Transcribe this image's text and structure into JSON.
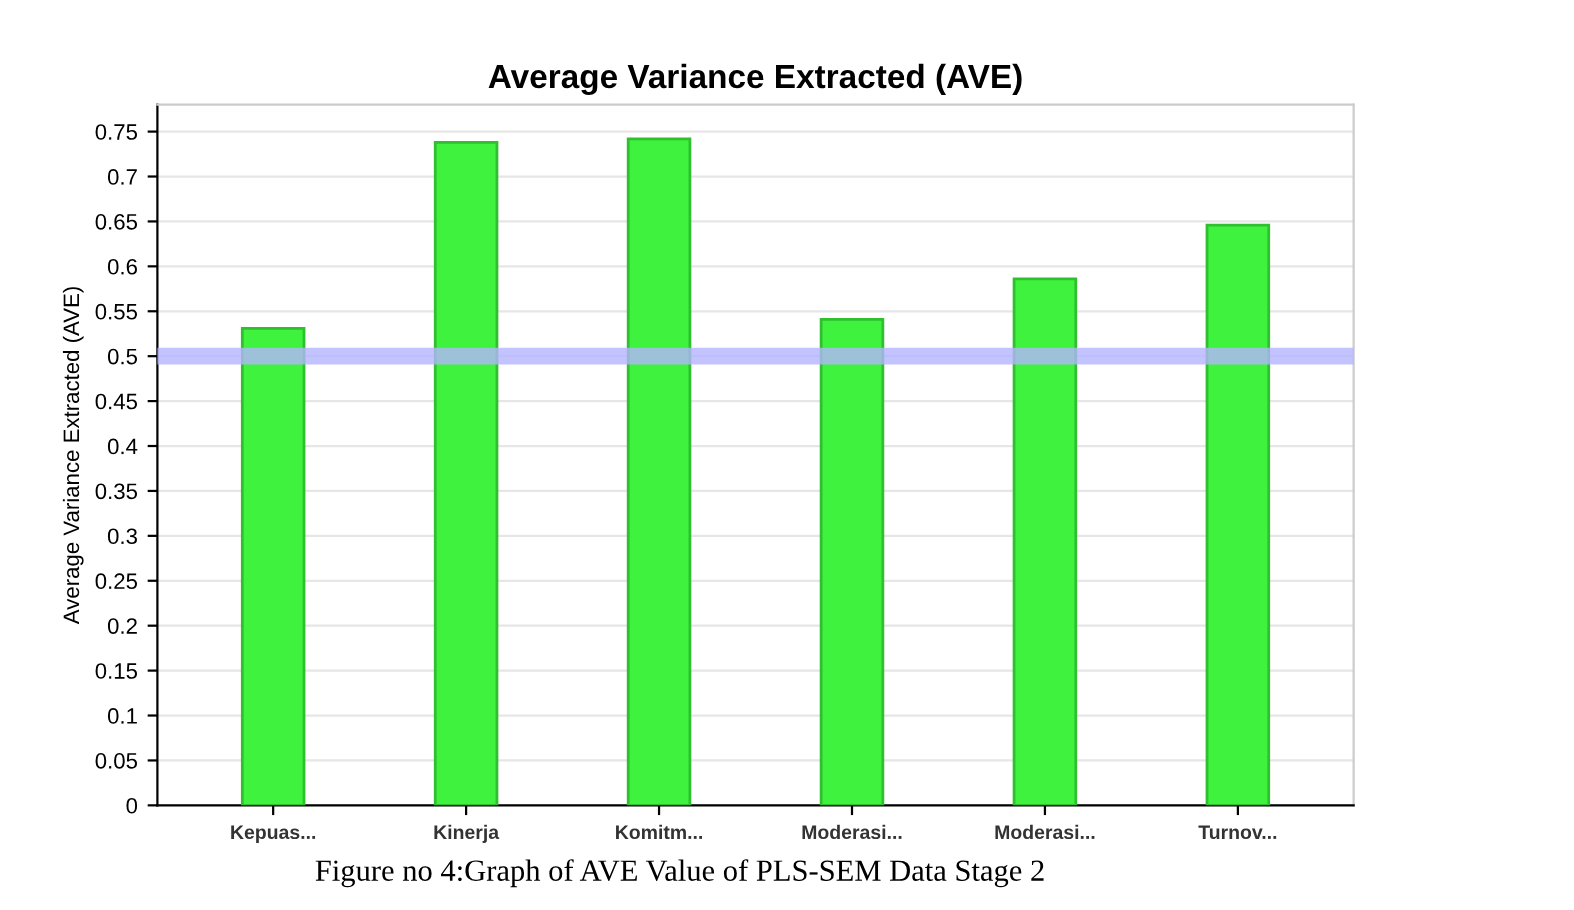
{
  "chart_data": {
    "type": "bar",
    "title": "Average Variance Extracted (AVE)",
    "ylabel": "Average Variance Extracted (AVE)",
    "categories": [
      "Kepuas...",
      "Kinerja",
      "Komitm...",
      "Moderasi...",
      "Moderasi...",
      "Turnov..."
    ],
    "values": [
      0.531,
      0.738,
      0.742,
      0.541,
      0.586,
      0.646
    ],
    "color": "#3ef23e",
    "ylim": [
      0,
      0.78
    ],
    "yticks": [
      0,
      0.05,
      0.1,
      0.15,
      0.2,
      0.25,
      0.3,
      0.35,
      0.4,
      0.45,
      0.5,
      0.55,
      0.6,
      0.65,
      0.7,
      0.75
    ],
    "grid": "y",
    "ref_lines": [
      {
        "axis": "y",
        "value": 0.5,
        "color": "#b4b4ff"
      }
    ],
    "annotations": [
      "Figure no 4:Graph of AVE Value of PLS-SEM Data Stage 2"
    ]
  }
}
